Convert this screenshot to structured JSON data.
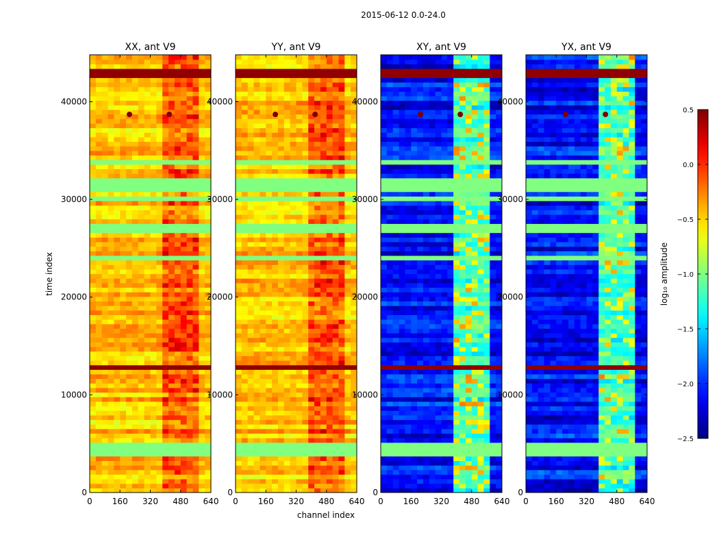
{
  "suptitle": "2015-06-12 0.0-24.0",
  "chart_data": {
    "type": "heatmap",
    "title": "2015-06-12 0.0-24.0",
    "xlabel": "channel index",
    "ylabel": "time index",
    "xlim": [
      0,
      640
    ],
    "ylim": [
      0,
      44800
    ],
    "xticks": [
      0,
      160,
      320,
      480,
      640
    ],
    "yticks": [
      0,
      10000,
      20000,
      30000,
      40000
    ],
    "colorbar": {
      "label": "log₁₀ amplitude",
      "colormap": "jet",
      "range": [
        -2.5,
        0.5
      ],
      "ticks": [
        0.5,
        0.0,
        -0.5,
        -1.0,
        -1.5,
        -2.0,
        -2.5
      ],
      "tick_labels": [
        "0.5",
        "0.0",
        "−0.5",
        "−1.0",
        "−1.5",
        "−2.0",
        "−2.5"
      ]
    },
    "panels": [
      {
        "title": "XX, ant V9",
        "background_level": -0.45,
        "band_level": -0.2
      },
      {
        "title": "YY, ant V9",
        "background_level": -0.45,
        "band_level": -0.2
      },
      {
        "title": "XY, ant V9",
        "background_level": -2.1,
        "band_level": -1.2
      },
      {
        "title": "YX, ant V9",
        "background_level": -2.1,
        "band_level": -1.2
      }
    ],
    "features": {
      "flagged_time_ranges": [
        [
          3800,
          5200
        ],
        [
          13000,
          13200
        ],
        [
          24000,
          24300
        ],
        [
          26500,
          27500
        ],
        [
          30800,
          32200
        ],
        [
          33500,
          34200
        ],
        [
          29800,
          30500
        ]
      ],
      "flagged_level": -1.0,
      "strong_channel_range": [
        400,
        580
      ],
      "strong_time_ranges": [
        [
          42500,
          43500
        ],
        [
          12600,
          12900
        ]
      ],
      "hot_spot_time": 38700,
      "hot_spot_channels": [
        210,
        420
      ]
    }
  }
}
